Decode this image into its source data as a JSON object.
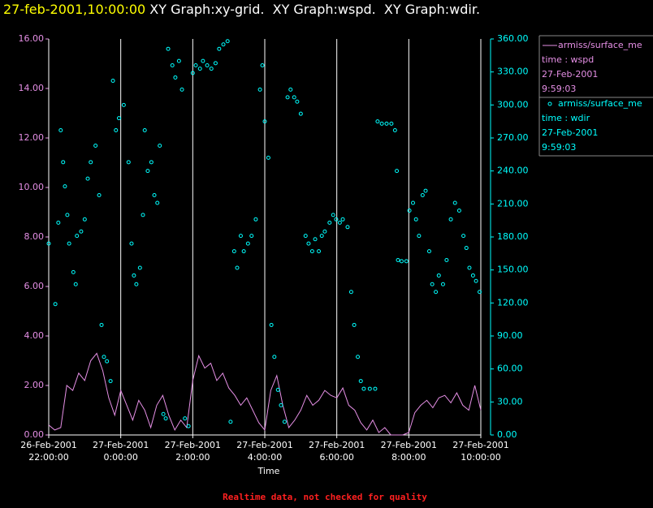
{
  "header": {
    "time": "27-feb-2001,10:00:00",
    "graphs": " XY Graph:xy-grid.  XY Graph:wspd.  XY Graph:wdir."
  },
  "footer": "Realtime data, not checked for quality",
  "chart_data": {
    "type": "xy",
    "xlabel": "Time",
    "xgrid": true,
    "xlim": [
      "2001-02-26 22:00:00",
      "2001-02-27 10:00:00"
    ],
    "xticks": [
      {
        "value": "2001-02-26 22:00:00",
        "label": [
          "26-Feb-2001",
          "22:00:00"
        ]
      },
      {
        "value": "2001-02-27 00:00:00",
        "label": [
          "27-Feb-2001",
          "0:00:00"
        ]
      },
      {
        "value": "2001-02-27 02:00:00",
        "label": [
          "27-Feb-2001",
          "2:00:00"
        ]
      },
      {
        "value": "2001-02-27 04:00:00",
        "label": [
          "27-Feb-2001",
          "4:00:00"
        ]
      },
      {
        "value": "2001-02-27 06:00:00",
        "label": [
          "27-Feb-2001",
          "6:00:00"
        ]
      },
      {
        "value": "2001-02-27 08:00:00",
        "label": [
          "27-Feb-2001",
          "8:00:00"
        ]
      },
      {
        "value": "2001-02-27 10:00:00",
        "label": [
          "27-Feb-2001",
          "10:00:00"
        ]
      }
    ],
    "ylim": [
      0,
      16
    ],
    "yticks": [
      {
        "value": 0,
        "label": "0.00"
      },
      {
        "value": 2,
        "label": "2.00"
      },
      {
        "value": 4,
        "label": "4.00"
      },
      {
        "value": 6,
        "label": "6.00"
      },
      {
        "value": 8,
        "label": "8.00"
      },
      {
        "value": 10,
        "label": "10.00"
      },
      {
        "value": 12,
        "label": "12.00"
      },
      {
        "value": 14,
        "label": "14.00"
      },
      {
        "value": 16,
        "label": "16.00"
      }
    ],
    "y2lim": [
      0,
      360
    ],
    "y2ticks": [
      {
        "value": 0,
        "label": "0.00"
      },
      {
        "value": 30,
        "label": "30.00"
      },
      {
        "value": 60,
        "label": "60.00"
      },
      {
        "value": 90,
        "label": "90.00"
      },
      {
        "value": 120,
        "label": "120.00"
      },
      {
        "value": 150,
        "label": "150.00"
      },
      {
        "value": 180,
        "label": "180.00"
      },
      {
        "value": 210,
        "label": "210.00"
      },
      {
        "value": 240,
        "label": "240.00"
      },
      {
        "value": 270,
        "label": "270.00"
      },
      {
        "value": 300,
        "label": "300.00"
      },
      {
        "value": 330,
        "label": "330.00"
      },
      {
        "value": 360,
        "label": "360.00"
      }
    ],
    "ycolor": "#e58fe5",
    "y2color": "#00ffff",
    "series": [
      {
        "name": "armiss/surface_me",
        "variable": "time : wspd",
        "date": "27-Feb-2001",
        "time": "9:59:03",
        "style": "line",
        "color": "#e58fe5",
        "axis": "y",
        "x": [
          "2001-02-26 22:00:00",
          "2001-02-26 22:10:00",
          "2001-02-26 22:20:00",
          "2001-02-26 22:30:00",
          "2001-02-26 22:40:00",
          "2001-02-26 22:50:00",
          "2001-02-26 23:00:00",
          "2001-02-26 23:10:00",
          "2001-02-26 23:20:00",
          "2001-02-26 23:30:00",
          "2001-02-26 23:40:00",
          "2001-02-26 23:50:00",
          "2001-02-27 00:00:00",
          "2001-02-27 00:10:00",
          "2001-02-27 00:20:00",
          "2001-02-27 00:30:00",
          "2001-02-27 00:40:00",
          "2001-02-27 00:50:00",
          "2001-02-27 01:00:00",
          "2001-02-27 01:10:00",
          "2001-02-27 01:20:00",
          "2001-02-27 01:30:00",
          "2001-02-27 01:40:00",
          "2001-02-27 01:50:00",
          "2001-02-27 02:00:00",
          "2001-02-27 02:10:00",
          "2001-02-27 02:20:00",
          "2001-02-27 02:30:00",
          "2001-02-27 02:40:00",
          "2001-02-27 02:50:00",
          "2001-02-27 03:00:00",
          "2001-02-27 03:10:00",
          "2001-02-27 03:20:00",
          "2001-02-27 03:30:00",
          "2001-02-27 03:40:00",
          "2001-02-27 03:50:00",
          "2001-02-27 04:00:00",
          "2001-02-27 04:10:00",
          "2001-02-27 04:20:00",
          "2001-02-27 04:30:00",
          "2001-02-27 04:40:00",
          "2001-02-27 04:50:00",
          "2001-02-27 05:00:00",
          "2001-02-27 05:10:00",
          "2001-02-27 05:20:00",
          "2001-02-27 05:30:00",
          "2001-02-27 05:40:00",
          "2001-02-27 05:50:00",
          "2001-02-27 06:00:00",
          "2001-02-27 06:10:00",
          "2001-02-27 06:20:00",
          "2001-02-27 06:30:00",
          "2001-02-27 06:40:00",
          "2001-02-27 06:50:00",
          "2001-02-27 07:00:00",
          "2001-02-27 07:10:00",
          "2001-02-27 07:20:00",
          "2001-02-27 07:30:00",
          "2001-02-27 07:40:00",
          "2001-02-27 07:50:00",
          "2001-02-27 08:00:00",
          "2001-02-27 08:10:00",
          "2001-02-27 08:20:00",
          "2001-02-27 08:30:00",
          "2001-02-27 08:40:00",
          "2001-02-27 08:50:00",
          "2001-02-27 09:00:00",
          "2001-02-27 09:10:00",
          "2001-02-27 09:20:00",
          "2001-02-27 09:30:00",
          "2001-02-27 09:40:00",
          "2001-02-27 09:50:00",
          "2001-02-27 10:00:00"
        ],
        "values": [
          0.4,
          0.2,
          0.3,
          2.0,
          1.8,
          2.5,
          2.2,
          3.0,
          3.3,
          2.6,
          1.5,
          0.8,
          1.8,
          1.2,
          0.6,
          1.4,
          1.0,
          0.3,
          1.2,
          1.6,
          0.8,
          0.2,
          0.6,
          0.3,
          2.2,
          3.2,
          2.7,
          2.9,
          2.2,
          2.5,
          1.9,
          1.6,
          1.2,
          1.5,
          1.0,
          0.5,
          0.2,
          1.8,
          2.4,
          1.2,
          0.3,
          0.6,
          1.0,
          1.6,
          1.2,
          1.4,
          1.8,
          1.6,
          1.5,
          1.9,
          1.2,
          1.0,
          0.5,
          0.2,
          0.6,
          0.1,
          0.3,
          0.0,
          0.0,
          0.0,
          0.1,
          0.9,
          1.2,
          1.4,
          1.1,
          1.5,
          1.6,
          1.3,
          1.7,
          1.2,
          1.0,
          2.0,
          1.0
        ]
      },
      {
        "name": "armiss/surface_me",
        "variable": "time : wdir",
        "date": "27-Feb-2001",
        "time": "9:59:03",
        "style": "markers",
        "color": "#00ffff",
        "axis": "y2",
        "x": [
          "2001-02-26 22:00:00",
          "2001-02-26 22:11:00",
          "2001-02-26 22:16:00",
          "2001-02-26 22:20:00",
          "2001-02-26 22:24:00",
          "2001-02-26 22:27:00",
          "2001-02-26 22:31:00",
          "2001-02-26 22:34:00",
          "2001-02-26 22:41:00",
          "2001-02-26 22:45:00",
          "2001-02-26 22:47:00",
          "2001-02-26 22:54:00",
          "2001-02-26 23:00:00",
          "2001-02-26 23:05:00",
          "2001-02-26 23:10:00",
          "2001-02-26 23:18:00",
          "2001-02-26 23:24:00",
          "2001-02-26 23:28:00",
          "2001-02-26 23:32:00",
          "2001-02-26 23:37:00",
          "2001-02-26 23:43:00",
          "2001-02-26 23:47:00",
          "2001-02-26 23:52:00",
          "2001-02-26 23:57:00",
          "2001-02-27 00:05:00",
          "2001-02-27 00:13:00",
          "2001-02-27 00:18:00",
          "2001-02-27 00:22:00",
          "2001-02-27 00:26:00",
          "2001-02-27 00:32:00",
          "2001-02-27 00:37:00",
          "2001-02-27 00:40:00",
          "2001-02-27 00:45:00",
          "2001-02-27 00:51:00",
          "2001-02-27 00:56:00",
          "2001-02-27 01:01:00",
          "2001-02-27 01:05:00",
          "2001-02-27 01:11:00",
          "2001-02-27 01:15:00",
          "2001-02-27 01:19:00",
          "2001-02-27 01:26:00",
          "2001-02-27 01:31:00",
          "2001-02-27 01:37:00",
          "2001-02-27 01:42:00",
          "2001-02-27 01:47:00",
          "2001-02-27 01:53:00",
          "2001-02-27 02:00:00",
          "2001-02-27 02:05:00",
          "2001-02-27 02:12:00",
          "2001-02-27 02:17:00",
          "2001-02-27 02:24:00",
          "2001-02-27 02:31:00",
          "2001-02-27 02:38:00",
          "2001-02-27 02:44:00",
          "2001-02-27 02:51:00",
          "2001-02-27 02:58:00",
          "2001-02-27 03:03:00",
          "2001-02-27 03:09:00",
          "2001-02-27 03:14:00",
          "2001-02-27 03:20:00",
          "2001-02-27 03:25:00",
          "2001-02-27 03:32:00",
          "2001-02-27 03:38:00",
          "2001-02-27 03:45:00",
          "2001-02-27 03:52:00",
          "2001-02-27 03:56:00",
          "2001-02-27 04:00:00",
          "2001-02-27 04:06:00",
          "2001-02-27 04:11:00",
          "2001-02-27 04:16:00",
          "2001-02-27 04:22:00",
          "2001-02-27 04:27:00",
          "2001-02-27 04:33:00",
          "2001-02-27 04:38:00",
          "2001-02-27 04:43:00",
          "2001-02-27 04:49:00",
          "2001-02-27 04:54:00",
          "2001-02-27 05:00:00",
          "2001-02-27 05:08:00",
          "2001-02-27 05:13:00",
          "2001-02-27 05:19:00",
          "2001-02-27 05:24:00",
          "2001-02-27 05:30:00",
          "2001-02-27 05:35:00",
          "2001-02-27 05:40:00",
          "2001-02-27 05:48:00",
          "2001-02-27 05:54:00",
          "2001-02-27 05:59:00",
          "2001-02-27 06:05:00",
          "2001-02-27 06:10:00",
          "2001-02-27 06:18:00",
          "2001-02-27 06:24:00",
          "2001-02-27 06:29:00",
          "2001-02-27 06:35:00",
          "2001-02-27 06:40:00",
          "2001-02-27 06:45:00",
          "2001-02-27 06:55:00",
          "2001-02-27 07:04:00",
          "2001-02-27 07:08:00",
          "2001-02-27 07:15:00",
          "2001-02-27 07:23:00",
          "2001-02-27 07:31:00",
          "2001-02-27 07:37:00",
          "2001-02-27 07:40:00",
          "2001-02-27 07:42:00",
          "2001-02-27 07:48:00",
          "2001-02-27 07:56:00",
          "2001-02-27 08:01:00",
          "2001-02-27 08:07:00",
          "2001-02-27 08:12:00",
          "2001-02-27 08:17:00",
          "2001-02-27 08:23:00",
          "2001-02-27 08:28:00",
          "2001-02-27 08:34:00",
          "2001-02-27 08:39:00",
          "2001-02-27 08:45:00",
          "2001-02-27 08:50:00",
          "2001-02-27 08:57:00",
          "2001-02-27 09:03:00",
          "2001-02-27 09:10:00",
          "2001-02-27 09:17:00",
          "2001-02-27 09:24:00",
          "2001-02-27 09:31:00",
          "2001-02-27 09:36:00",
          "2001-02-27 09:41:00",
          "2001-02-27 09:47:00",
          "2001-02-27 09:52:00",
          "2001-02-27 09:58:00"
        ],
        "values": [
          174,
          119,
          193,
          277,
          248,
          226,
          200,
          174,
          148,
          137,
          181,
          185,
          196,
          233,
          248,
          263,
          218,
          100,
          71,
          67,
          49,
          322,
          277,
          288,
          300,
          248,
          174,
          145,
          137,
          152,
          200,
          277,
          240,
          248,
          218,
          211,
          263,
          19,
          15,
          351,
          336,
          325,
          340,
          314,
          15,
          8,
          329,
          336,
          333,
          340,
          336,
          333,
          338,
          351,
          355,
          358,
          12,
          167,
          152,
          181,
          167,
          174,
          181,
          196,
          314,
          336,
          285,
          252,
          100,
          71,
          41,
          27,
          12,
          307,
          314,
          307,
          303,
          292,
          181,
          174,
          167,
          178,
          167,
          181,
          185,
          193,
          200,
          196,
          193,
          196,
          189,
          130,
          100,
          71,
          49,
          42,
          42,
          42,
          285,
          283,
          283,
          283,
          277,
          240,
          159,
          158,
          158,
          204,
          211,
          196,
          181,
          218,
          222,
          167,
          137,
          130,
          145,
          137,
          159,
          196,
          211,
          204,
          181,
          170,
          152,
          145,
          140,
          130
        ]
      }
    ]
  }
}
